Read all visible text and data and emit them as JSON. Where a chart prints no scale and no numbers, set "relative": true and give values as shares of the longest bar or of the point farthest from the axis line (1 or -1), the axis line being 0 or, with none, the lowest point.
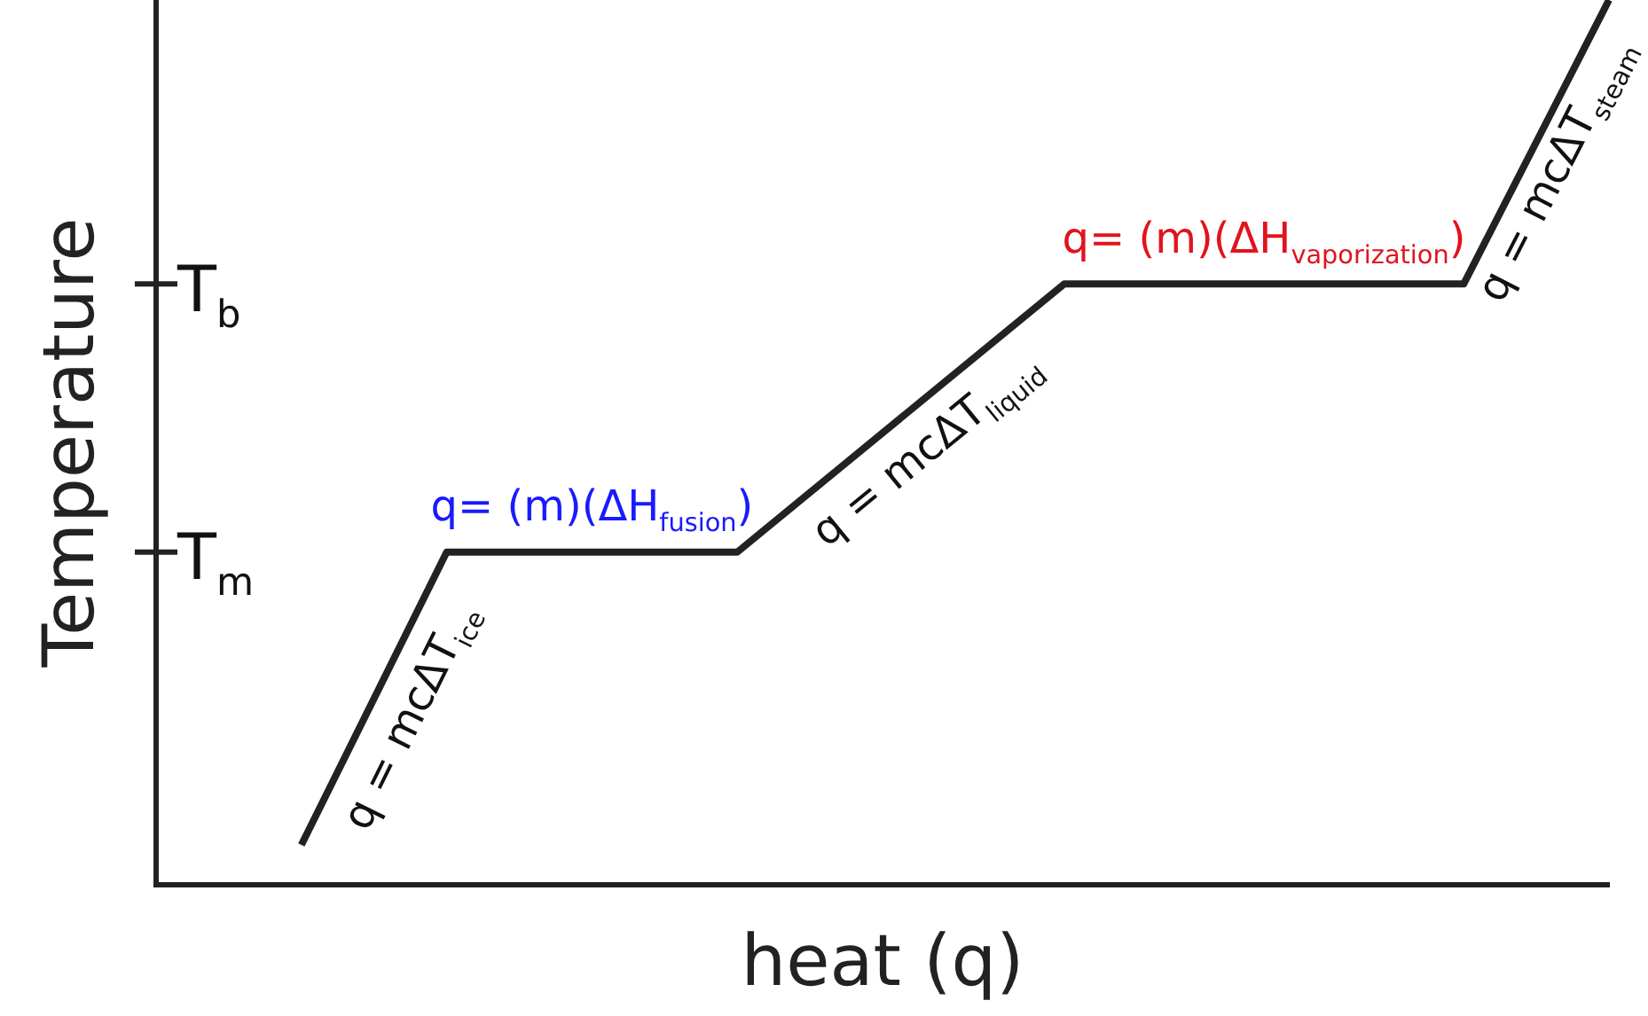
{
  "chart_data": {
    "type": "line",
    "relative": true,
    "xlabel": "heat (q)",
    "ylabel": "Temperature",
    "categories": [
      null,
      null,
      null,
      null,
      null,
      null,
      null,
      null,
      null,
      null,
      null,
      null,
      null,
      null,
      null,
      null,
      null,
      null,
      null,
      null,
      null,
      null,
      null,
      null,
      null,
      null,
      null,
      null,
      null,
      null,
      null,
      null,
      null,
      null,
      null,
      null,
      null,
      null,
      null,
      null,
      null
    ],
    "values": [
      null,
      null,
      null,
      null,
      0.045,
      null,
      null,
      null,
      0.376,
      null,
      null,
      null,
      null,
      null,
      null,
      null,
      0.376,
      null,
      null,
      null,
      null,
      null,
      null,
      null,
      null,
      0.679,
      null,
      null,
      null,
      null,
      null,
      null,
      null,
      null,
      null,
      null,
      0.679,
      null,
      null,
      null,
      1
    ],
    "color": "#222222",
    "marker": "none",
    "grid": false,
    "legend": false,
    "annotations": [
      "T$_{b}$",
      "T$_{m}$",
      "q = mcΔT$_{ice}$",
      "q= (m)(ΔH$_{fusion}$)",
      "q = mcΔT$_{liquid}$",
      "q= (m)(ΔH$_{vaporization}$)",
      "q = mcΔT$_{steam}$"
    ]
  }
}
